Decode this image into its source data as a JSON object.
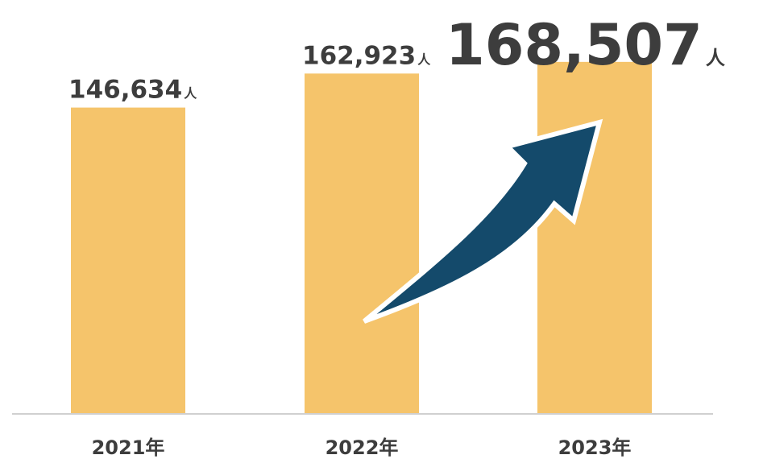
{
  "chart_data": {
    "type": "bar",
    "categories": [
      "2021年",
      "2022年",
      "2023年"
    ],
    "values": [
      146634,
      162923,
      168507
    ],
    "value_labels": [
      "146,634",
      "162,923",
      "168,507"
    ],
    "value_unit": "人",
    "bar_color": "#f5c46b",
    "axis_color": "#d0d0d0",
    "arrow_color": "#144a6b",
    "ylim": [
      0,
      175000
    ],
    "grid": false,
    "legend": "none",
    "highlight_index": 2
  }
}
